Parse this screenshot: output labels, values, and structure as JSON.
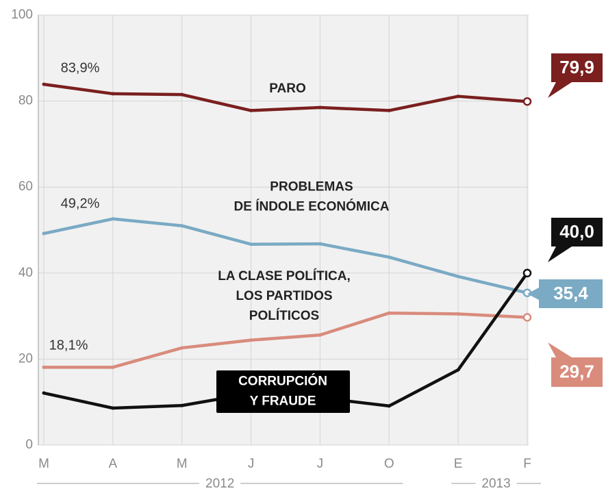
{
  "chart_data": {
    "type": "line",
    "categories": [
      "M",
      "A",
      "M",
      "J",
      "J",
      "O",
      "E",
      "F"
    ],
    "x_groups": [
      {
        "label": "2012",
        "start": 0,
        "end": 5
      },
      {
        "label": "2013",
        "start": 6,
        "end": 7
      }
    ],
    "series": [
      {
        "name": "PARO",
        "color": "#7b1f1f",
        "values": [
          83.9,
          81.7,
          81.5,
          77.8,
          78.5,
          77.8,
          81.1,
          79.9
        ],
        "value_labels": [
          "83,9%",
          null,
          null,
          null,
          null,
          null,
          null,
          "79,9"
        ]
      },
      {
        "name": "PROBLEMAS\nDE ÍNDOLE ECONÓMICA",
        "color": "#7aaac4",
        "values": [
          49.2,
          52.6,
          51.0,
          46.7,
          46.8,
          43.7,
          39.2,
          35.4
        ],
        "value_labels": [
          "49,2%",
          null,
          null,
          null,
          null,
          null,
          null,
          "35,4"
        ]
      },
      {
        "name": "LA CLASE POLÍTICA,\nLOS PARTIDOS\nPOLÍTICOS",
        "color": "#d98b7c",
        "values": [
          18.1,
          18.1,
          22.6,
          24.4,
          25.6,
          30.7,
          30.5,
          29.7
        ],
        "value_labels": [
          "18,1%",
          null,
          null,
          null,
          null,
          null,
          null,
          "29,7"
        ]
      },
      {
        "name": "CORRUPCIÓN\nY FRAUDE",
        "color": "#111111",
        "values": [
          12.1,
          8.6,
          9.2,
          12.0,
          11.0,
          9.1,
          17.5,
          40.0
        ],
        "value_labels": [
          null,
          null,
          null,
          null,
          null,
          null,
          null,
          "40,0"
        ]
      }
    ],
    "ylim": [
      0,
      100
    ],
    "yticks": [
      0,
      20,
      40,
      60,
      80,
      100
    ],
    "grid": true
  }
}
